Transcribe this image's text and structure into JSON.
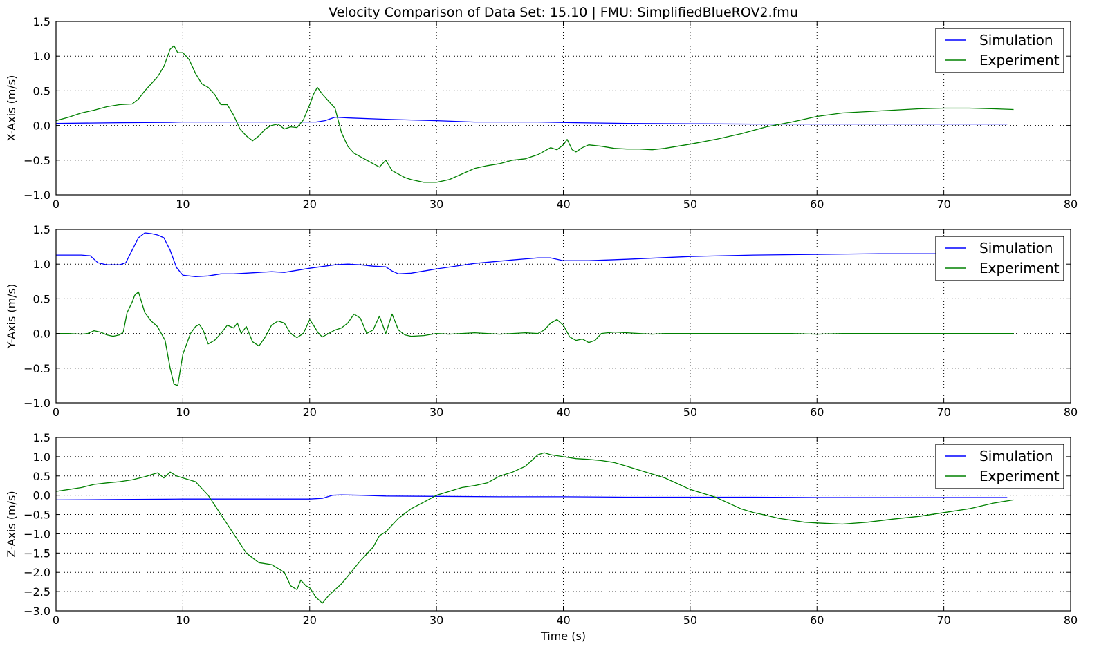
{
  "chart_data": [
    {
      "type": "line",
      "title": "Velocity Comparison of Data Set: 15.10 | FMU: SimplifiedBlueROV2.fmu",
      "xlabel": "",
      "ylabel": "X-Axis (m/s)",
      "xlim": [
        0,
        80
      ],
      "ylim": [
        -1.0,
        1.5
      ],
      "xticks": [
        0,
        10,
        20,
        30,
        40,
        50,
        60,
        70,
        80
      ],
      "yticks": [
        -1.0,
        -0.5,
        0.0,
        0.5,
        1.0,
        1.5
      ],
      "grid": true,
      "legend_position": "top-right",
      "series": [
        {
          "name": "Simulation",
          "color": "#0000ff",
          "x": [
            0,
            5,
            9,
            10,
            15,
            19,
            20.5,
            21.2,
            22,
            23,
            26,
            30,
            33,
            38,
            41,
            45,
            50,
            55,
            60,
            65,
            70,
            75
          ],
          "y": [
            0.03,
            0.04,
            0.045,
            0.05,
            0.05,
            0.05,
            0.05,
            0.07,
            0.12,
            0.11,
            0.09,
            0.07,
            0.05,
            0.05,
            0.04,
            0.03,
            0.025,
            0.02,
            0.02,
            0.02,
            0.02,
            0.02
          ]
        },
        {
          "name": "Experiment",
          "color": "#008000",
          "x": [
            0,
            1,
            2,
            3,
            4,
            5,
            6,
            6.5,
            7,
            7.5,
            8,
            8.5,
            9,
            9.3,
            9.6,
            10,
            10.5,
            11,
            11.5,
            12,
            12.5,
            13,
            13.5,
            14,
            14.5,
            15,
            15.5,
            16,
            16.5,
            17,
            17.5,
            18,
            18.5,
            19,
            19.5,
            20,
            20.3,
            20.6,
            21,
            21.5,
            22,
            22.5,
            23,
            23.5,
            24,
            24.5,
            25,
            25.5,
            26,
            26.5,
            27,
            27.5,
            28,
            28.5,
            29,
            29.5,
            30,
            31,
            32,
            33,
            34,
            35,
            36,
            37,
            38,
            39,
            39.5,
            40,
            40.3,
            40.7,
            41,
            41.5,
            42,
            43,
            44,
            45,
            46,
            47,
            48,
            49,
            50,
            52,
            54,
            56,
            58,
            60,
            62,
            64,
            66,
            68,
            70,
            72,
            74,
            75.5
          ],
          "y": [
            0.07,
            0.12,
            0.18,
            0.22,
            0.27,
            0.3,
            0.31,
            0.38,
            0.5,
            0.6,
            0.7,
            0.85,
            1.1,
            1.15,
            1.05,
            1.05,
            0.95,
            0.75,
            0.6,
            0.55,
            0.45,
            0.3,
            0.3,
            0.15,
            -0.05,
            -0.15,
            -0.22,
            -0.15,
            -0.05,
            0.0,
            0.02,
            -0.05,
            -0.02,
            -0.03,
            0.08,
            0.3,
            0.45,
            0.55,
            0.45,
            0.35,
            0.25,
            -0.1,
            -0.3,
            -0.4,
            -0.45,
            -0.5,
            -0.55,
            -0.6,
            -0.5,
            -0.65,
            -0.7,
            -0.75,
            -0.78,
            -0.8,
            -0.82,
            -0.82,
            -0.82,
            -0.78,
            -0.7,
            -0.62,
            -0.58,
            -0.55,
            -0.5,
            -0.48,
            -0.42,
            -0.32,
            -0.35,
            -0.28,
            -0.2,
            -0.35,
            -0.38,
            -0.32,
            -0.28,
            -0.3,
            -0.33,
            -0.34,
            -0.34,
            -0.35,
            -0.33,
            -0.3,
            -0.27,
            -0.2,
            -0.12,
            -0.02,
            0.05,
            0.13,
            0.18,
            0.2,
            0.22,
            0.24,
            0.25,
            0.25,
            0.24,
            0.23
          ]
        }
      ]
    },
    {
      "type": "line",
      "title": "",
      "xlabel": "",
      "ylabel": "Y-Axis (m/s)",
      "xlim": [
        0,
        80
      ],
      "ylim": [
        -1.0,
        1.5
      ],
      "xticks": [
        0,
        10,
        20,
        30,
        40,
        50,
        60,
        70,
        80
      ],
      "yticks": [
        -1.0,
        -0.5,
        0.0,
        0.5,
        1.0,
        1.5
      ],
      "grid": true,
      "legend_position": "top-right",
      "series": [
        {
          "name": "Simulation",
          "color": "#0000ff",
          "x": [
            0,
            2,
            2.7,
            3.3,
            4,
            5,
            5.5,
            6,
            6.5,
            7,
            7.5,
            8,
            8.5,
            9,
            9.5,
            10,
            11,
            12,
            13,
            14,
            15,
            16,
            17,
            18,
            20,
            22,
            23,
            24,
            25,
            26,
            26.5,
            27,
            28,
            30,
            33,
            36,
            38,
            39,
            40,
            42,
            45,
            50,
            55,
            60,
            65,
            70,
            75
          ],
          "y": [
            1.13,
            1.13,
            1.12,
            1.02,
            0.99,
            0.99,
            1.02,
            1.2,
            1.38,
            1.45,
            1.44,
            1.42,
            1.38,
            1.2,
            0.95,
            0.84,
            0.82,
            0.83,
            0.86,
            0.86,
            0.87,
            0.88,
            0.89,
            0.88,
            0.94,
            0.99,
            1.0,
            0.99,
            0.97,
            0.96,
            0.9,
            0.86,
            0.87,
            0.93,
            1.01,
            1.06,
            1.09,
            1.09,
            1.05,
            1.05,
            1.07,
            1.11,
            1.13,
            1.14,
            1.15,
            1.15,
            1.15
          ]
        },
        {
          "name": "Experiment",
          "color": "#008000",
          "x": [
            0,
            1,
            2,
            2.5,
            3,
            3.5,
            4,
            4.5,
            5,
            5.3,
            5.6,
            6,
            6.2,
            6.5,
            7,
            7.5,
            8,
            8.3,
            8.6,
            9,
            9.3,
            9.6,
            10,
            10.3,
            10.6,
            11,
            11.3,
            11.6,
            12,
            12.5,
            13,
            13.5,
            14,
            14.3,
            14.6,
            15,
            15.5,
            16,
            16.5,
            17,
            17.5,
            18,
            18.5,
            19,
            19.5,
            20,
            20.3,
            20.7,
            21,
            21.5,
            22,
            22.5,
            23,
            23.5,
            24,
            24.5,
            25,
            25.5,
            26,
            26.5,
            27,
            27.5,
            28,
            29,
            30,
            31,
            32,
            33,
            34,
            35,
            36,
            37,
            38,
            38.5,
            39,
            39.5,
            40,
            40.5,
            41,
            41.5,
            42,
            42.5,
            43,
            44,
            45,
            46,
            47,
            48,
            50,
            52,
            55,
            58,
            60,
            62,
            65,
            68,
            70,
            72,
            74,
            75.5
          ],
          "y": [
            0.0,
            0.0,
            -0.01,
            0.0,
            0.04,
            0.02,
            -0.02,
            -0.04,
            -0.02,
            0.02,
            0.3,
            0.45,
            0.55,
            0.6,
            0.3,
            0.18,
            0.1,
            0.0,
            -0.1,
            -0.5,
            -0.73,
            -0.75,
            -0.3,
            -0.15,
            0.0,
            0.1,
            0.13,
            0.05,
            -0.15,
            -0.1,
            0.0,
            0.12,
            0.08,
            0.15,
            0.0,
            0.1,
            -0.12,
            -0.18,
            -0.05,
            0.12,
            0.18,
            0.15,
            0.0,
            -0.06,
            0.0,
            0.2,
            0.12,
            0.0,
            -0.05,
            0.0,
            0.05,
            0.08,
            0.15,
            0.28,
            0.22,
            0.0,
            0.05,
            0.25,
            0.0,
            0.28,
            0.05,
            -0.02,
            -0.04,
            -0.03,
            0.0,
            -0.01,
            0.0,
            0.01,
            0.0,
            -0.01,
            0.0,
            0.01,
            0.0,
            0.05,
            0.15,
            0.2,
            0.12,
            -0.05,
            -0.1,
            -0.08,
            -0.13,
            -0.1,
            0.0,
            0.02,
            0.01,
            0.0,
            -0.01,
            0.0,
            0.0,
            0.0,
            0.0,
            0.0,
            -0.01,
            0.0,
            0.0,
            0.0,
            0.0,
            0.0,
            0.0,
            0.0
          ]
        }
      ]
    },
    {
      "type": "line",
      "title": "",
      "xlabel": "Time (s)",
      "ylabel": "Z-Axis (m/s)",
      "xlim": [
        0,
        80
      ],
      "ylim": [
        -3.0,
        1.5
      ],
      "xticks": [
        0,
        10,
        20,
        30,
        40,
        50,
        60,
        70,
        80
      ],
      "yticks": [
        -3.0,
        -2.5,
        -2.0,
        -1.5,
        -1.0,
        -0.5,
        0.0,
        0.5,
        1.0,
        1.5
      ],
      "grid": true,
      "legend_position": "top-right",
      "series": [
        {
          "name": "Simulation",
          "color": "#0000ff",
          "x": [
            0,
            5,
            10,
            15,
            20,
            21,
            21.8,
            22.5,
            24,
            26,
            30,
            35,
            40,
            45,
            50,
            55,
            60,
            65,
            70,
            75
          ],
          "y": [
            -0.12,
            -0.11,
            -0.1,
            -0.1,
            -0.1,
            -0.08,
            0.0,
            0.01,
            0.0,
            -0.02,
            -0.03,
            -0.04,
            -0.04,
            -0.05,
            -0.05,
            -0.05,
            -0.06,
            -0.06,
            -0.06,
            -0.06
          ]
        },
        {
          "name": "Experiment",
          "color": "#008000",
          "x": [
            0,
            1,
            2,
            3,
            4,
            5,
            6,
            7,
            8,
            8.5,
            9,
            9.5,
            10,
            11,
            12,
            13,
            14,
            15,
            16,
            17,
            18,
            18.5,
            19,
            19.3,
            19.7,
            20,
            20.5,
            21,
            21.5,
            22,
            22.5,
            23,
            24,
            25,
            25.5,
            26,
            27,
            28,
            29,
            30,
            31,
            32,
            33,
            34,
            35,
            36,
            37,
            37.5,
            38,
            38.5,
            39,
            40,
            41,
            42,
            43,
            44,
            45,
            46,
            47,
            48,
            49,
            50,
            51,
            52,
            53,
            54,
            55,
            56,
            57,
            58,
            59,
            60,
            62,
            64,
            66,
            68,
            70,
            72,
            74,
            75.5
          ],
          "y": [
            0.1,
            0.15,
            0.2,
            0.28,
            0.32,
            0.35,
            0.4,
            0.48,
            0.58,
            0.45,
            0.6,
            0.5,
            0.45,
            0.35,
            0.0,
            -0.5,
            -1.0,
            -1.5,
            -1.75,
            -1.8,
            -2.0,
            -2.35,
            -2.45,
            -2.2,
            -2.35,
            -2.4,
            -2.65,
            -2.8,
            -2.6,
            -2.45,
            -2.3,
            -2.1,
            -1.7,
            -1.35,
            -1.05,
            -0.95,
            -0.6,
            -0.35,
            -0.18,
            0.0,
            0.1,
            0.2,
            0.25,
            0.32,
            0.5,
            0.6,
            0.75,
            0.9,
            1.05,
            1.1,
            1.05,
            1.0,
            0.95,
            0.93,
            0.9,
            0.85,
            0.75,
            0.65,
            0.55,
            0.45,
            0.3,
            0.15,
            0.05,
            -0.05,
            -0.2,
            -0.35,
            -0.45,
            -0.52,
            -0.6,
            -0.65,
            -0.7,
            -0.72,
            -0.75,
            -0.7,
            -0.62,
            -0.55,
            -0.45,
            -0.35,
            -0.2,
            -0.12
          ]
        }
      ]
    }
  ]
}
